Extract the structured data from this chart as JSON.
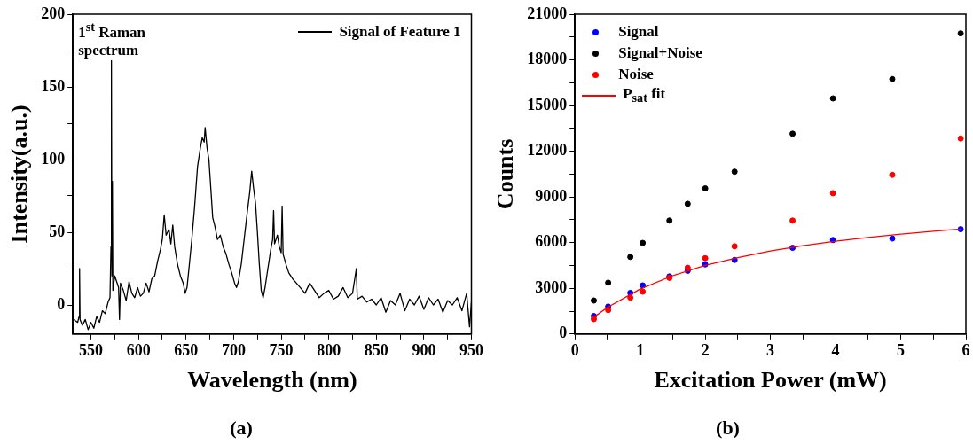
{
  "chart_data": [
    {
      "type": "line",
      "title": "(a)",
      "xlabel": "Wavelength (nm)",
      "ylabel": "Intensity(a.u.)",
      "annotations": [
        "1$^{st}$ Raman spectrum"
      ],
      "series": [
        {
          "name": "Signal of Feature 1",
          "color": "#000000",
          "x": [
            532,
            536,
            537.5,
            538,
            538.5,
            541,
            544,
            547,
            550,
            553,
            556,
            559,
            562,
            565,
            568,
            570,
            571,
            571.5,
            572,
            572.5,
            573,
            575,
            577,
            579,
            580,
            581,
            584,
            587,
            590,
            593,
            596,
            599,
            602,
            605,
            608,
            611,
            614,
            617,
            620,
            623,
            625,
            627,
            629,
            632,
            634,
            636,
            638,
            641,
            644,
            647,
            649,
            651,
            653,
            656,
            659,
            662,
            665,
            667,
            669,
            670,
            672,
            674,
            676,
            678,
            680,
            683,
            686,
            689,
            692,
            695,
            698,
            701,
            703,
            705,
            708,
            711,
            714,
            717,
            719,
            721,
            723,
            725,
            727,
            729,
            731,
            733,
            736,
            739,
            741,
            742,
            743,
            746,
            748,
            750,
            751,
            752,
            755,
            758,
            762,
            766,
            770,
            775,
            780,
            785,
            790,
            795,
            800,
            805,
            810,
            815,
            820,
            825,
            829,
            830,
            835,
            840,
            845,
            850,
            855,
            860,
            865,
            870,
            875,
            880,
            885,
            890,
            895,
            900,
            905,
            910,
            915,
            920,
            925,
            930,
            935,
            940,
            945,
            948,
            950
          ],
          "values": [
            -10,
            -12,
            -8,
            25,
            -10,
            -14,
            -10,
            -17,
            -12,
            -16,
            -8,
            -12,
            -4,
            -6,
            2,
            5,
            40,
            168,
            20,
            85,
            10,
            20,
            16,
            12,
            -10,
            15,
            10,
            3,
            16,
            8,
            5,
            12,
            6,
            8,
            15,
            9,
            18,
            20,
            30,
            38,
            45,
            62,
            48,
            52,
            42,
            55,
            40,
            28,
            20,
            15,
            8,
            12,
            25,
            45,
            68,
            95,
            108,
            115,
            112,
            122,
            108,
            100,
            80,
            60,
            55,
            45,
            48,
            40,
            35,
            28,
            22,
            15,
            12,
            16,
            28,
            45,
            62,
            78,
            92,
            80,
            70,
            50,
            28,
            10,
            5,
            12,
            25,
            38,
            45,
            65,
            42,
            48,
            40,
            36,
            68,
            35,
            28,
            22,
            18,
            15,
            12,
            8,
            15,
            10,
            5,
            8,
            10,
            4,
            6,
            12,
            5,
            8,
            25,
            4,
            6,
            2,
            4,
            0,
            5,
            -5,
            3,
            0,
            8,
            -4,
            4,
            0,
            6,
            -3,
            5,
            0,
            4,
            -5,
            3,
            0,
            5,
            -4,
            8,
            -15,
            2
          ]
        }
      ],
      "xlim": [
        531,
        950
      ],
      "xticks": [
        550,
        {
          "value": 575,
          "label": null
        },
        600,
        {
          "value": 625,
          "label": null
        },
        650,
        {
          "value": 675,
          "label": null
        },
        700,
        {
          "value": 725,
          "label": null
        },
        750,
        {
          "value": 775,
          "label": null
        },
        800,
        {
          "value": 825,
          "label": null
        },
        850,
        {
          "value": 875,
          "label": null
        },
        900,
        {
          "value": 925,
          "label": null
        },
        950
      ],
      "ylim": [
        -20,
        200
      ],
      "yticks": [
        0,
        {
          "value": 25,
          "label": null
        },
        50,
        {
          "value": 75,
          "label": null
        },
        100,
        {
          "value": 125,
          "label": null
        },
        150,
        {
          "value": 175,
          "label": null
        },
        200
      ],
      "legend": "top right",
      "marker": "none",
      "line_style": "solid"
    },
    {
      "type": "scatter",
      "title": "(b)",
      "xlabel": "Excitation Power (mW)",
      "ylabel": "Counts",
      "x": [
        0.29,
        0.51,
        0.85,
        1.04,
        1.45,
        1.73,
        2.0,
        2.45,
        3.34,
        3.96,
        4.87,
        5.92
      ],
      "series": [
        {
          "name": "Signal",
          "color": "#0000ff",
          "values": [
            1180,
            1800,
            2700,
            3190,
            3780,
            4150,
            4570,
            4860,
            5660,
            6170,
            6270,
            6880
          ]
        },
        {
          "name": "Signal+Noise",
          "color": "#000000",
          "values": [
            2200,
            3370,
            5060,
            5980,
            7450,
            8550,
            9560,
            10660,
            13150,
            15470,
            16740,
            19740
          ]
        },
        {
          "name": "Noise",
          "color": "#ff0000",
          "values": [
            980,
            1570,
            2390,
            2780,
            3690,
            4350,
            4980,
            5760,
            7450,
            9250,
            10450,
            12840
          ]
        },
        {
          "name": "P$_{sat}$ fit",
          "type": "line",
          "color": "#ff0000",
          "marker": "none",
          "x": [
            0.29,
            0.5,
            1,
            1.5,
            2,
            2.5,
            3,
            3.5,
            4,
            4.5,
            5,
            5.5,
            5.92
          ],
          "values": [
            1100,
            1750,
            2950,
            3830,
            4500,
            5020,
            5450,
            5800,
            6090,
            6340,
            6560,
            6750,
            6890
          ]
        }
      ],
      "xlim": [
        0,
        6
      ],
      "xticks": [
        0,
        {
          "value": 0.5,
          "label": null
        },
        1,
        {
          "value": 1.5,
          "label": null
        },
        2,
        {
          "value": 2.5,
          "label": null
        },
        3,
        {
          "value": 3.5,
          "label": null
        },
        4,
        {
          "value": 4.5,
          "label": null
        },
        5,
        {
          "value": 5.5,
          "label": null
        },
        6
      ],
      "ylim": [
        0,
        21000
      ],
      "yticks": [
        0,
        {
          "value": 1500,
          "label": null
        },
        3000,
        {
          "value": 4500,
          "label": null
        },
        6000,
        {
          "value": 7500,
          "label": null
        },
        9000,
        {
          "value": 10500,
          "label": null
        },
        12000,
        {
          "value": 13500,
          "label": null
        },
        15000,
        {
          "value": 16500,
          "label": null
        },
        18000,
        {
          "value": 19500,
          "label": null
        },
        21000
      ],
      "legend": "top left",
      "marker": "circle"
    }
  ]
}
